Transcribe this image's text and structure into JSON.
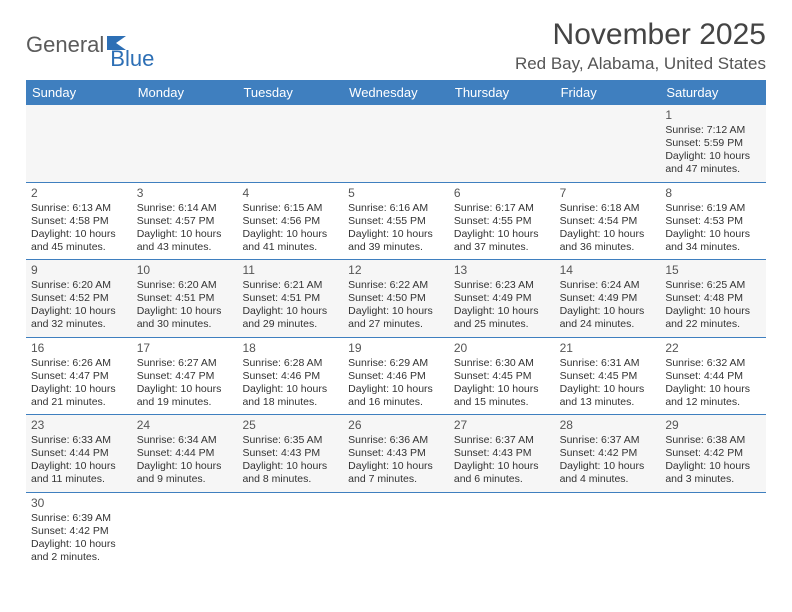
{
  "logo": {
    "text1": "General",
    "text2": "Blue"
  },
  "title": "November 2025",
  "location": "Red Bay, Alabama, United States",
  "day_headers": [
    "Sunday",
    "Monday",
    "Tuesday",
    "Wednesday",
    "Thursday",
    "Friday",
    "Saturday"
  ],
  "colors": {
    "header_bg": "#3f7fbf",
    "header_text": "#ffffff",
    "row_border": "#3f7fbf",
    "logo_blue": "#2d6fb5",
    "text": "#333333",
    "shaded_bg": "#f6f6f6"
  },
  "weeks": [
    [
      null,
      null,
      null,
      null,
      null,
      null,
      {
        "n": "1",
        "sr": "7:12 AM",
        "ss": "5:59 PM",
        "dl": "10 hours and 47 minutes."
      }
    ],
    [
      {
        "n": "2",
        "sr": "6:13 AM",
        "ss": "4:58 PM",
        "dl": "10 hours and 45 minutes."
      },
      {
        "n": "3",
        "sr": "6:14 AM",
        "ss": "4:57 PM",
        "dl": "10 hours and 43 minutes."
      },
      {
        "n": "4",
        "sr": "6:15 AM",
        "ss": "4:56 PM",
        "dl": "10 hours and 41 minutes."
      },
      {
        "n": "5",
        "sr": "6:16 AM",
        "ss": "4:55 PM",
        "dl": "10 hours and 39 minutes."
      },
      {
        "n": "6",
        "sr": "6:17 AM",
        "ss": "4:55 PM",
        "dl": "10 hours and 37 minutes."
      },
      {
        "n": "7",
        "sr": "6:18 AM",
        "ss": "4:54 PM",
        "dl": "10 hours and 36 minutes."
      },
      {
        "n": "8",
        "sr": "6:19 AM",
        "ss": "4:53 PM",
        "dl": "10 hours and 34 minutes."
      }
    ],
    [
      {
        "n": "9",
        "sr": "6:20 AM",
        "ss": "4:52 PM",
        "dl": "10 hours and 32 minutes."
      },
      {
        "n": "10",
        "sr": "6:20 AM",
        "ss": "4:51 PM",
        "dl": "10 hours and 30 minutes."
      },
      {
        "n": "11",
        "sr": "6:21 AM",
        "ss": "4:51 PM",
        "dl": "10 hours and 29 minutes."
      },
      {
        "n": "12",
        "sr": "6:22 AM",
        "ss": "4:50 PM",
        "dl": "10 hours and 27 minutes."
      },
      {
        "n": "13",
        "sr": "6:23 AM",
        "ss": "4:49 PM",
        "dl": "10 hours and 25 minutes."
      },
      {
        "n": "14",
        "sr": "6:24 AM",
        "ss": "4:49 PM",
        "dl": "10 hours and 24 minutes."
      },
      {
        "n": "15",
        "sr": "6:25 AM",
        "ss": "4:48 PM",
        "dl": "10 hours and 22 minutes."
      }
    ],
    [
      {
        "n": "16",
        "sr": "6:26 AM",
        "ss": "4:47 PM",
        "dl": "10 hours and 21 minutes."
      },
      {
        "n": "17",
        "sr": "6:27 AM",
        "ss": "4:47 PM",
        "dl": "10 hours and 19 minutes."
      },
      {
        "n": "18",
        "sr": "6:28 AM",
        "ss": "4:46 PM",
        "dl": "10 hours and 18 minutes."
      },
      {
        "n": "19",
        "sr": "6:29 AM",
        "ss": "4:46 PM",
        "dl": "10 hours and 16 minutes."
      },
      {
        "n": "20",
        "sr": "6:30 AM",
        "ss": "4:45 PM",
        "dl": "10 hours and 15 minutes."
      },
      {
        "n": "21",
        "sr": "6:31 AM",
        "ss": "4:45 PM",
        "dl": "10 hours and 13 minutes."
      },
      {
        "n": "22",
        "sr": "6:32 AM",
        "ss": "4:44 PM",
        "dl": "10 hours and 12 minutes."
      }
    ],
    [
      {
        "n": "23",
        "sr": "6:33 AM",
        "ss": "4:44 PM",
        "dl": "10 hours and 11 minutes."
      },
      {
        "n": "24",
        "sr": "6:34 AM",
        "ss": "4:44 PM",
        "dl": "10 hours and 9 minutes."
      },
      {
        "n": "25",
        "sr": "6:35 AM",
        "ss": "4:43 PM",
        "dl": "10 hours and 8 minutes."
      },
      {
        "n": "26",
        "sr": "6:36 AM",
        "ss": "4:43 PM",
        "dl": "10 hours and 7 minutes."
      },
      {
        "n": "27",
        "sr": "6:37 AM",
        "ss": "4:43 PM",
        "dl": "10 hours and 6 minutes."
      },
      {
        "n": "28",
        "sr": "6:37 AM",
        "ss": "4:42 PM",
        "dl": "10 hours and 4 minutes."
      },
      {
        "n": "29",
        "sr": "6:38 AM",
        "ss": "4:42 PM",
        "dl": "10 hours and 3 minutes."
      }
    ],
    [
      {
        "n": "30",
        "sr": "6:39 AM",
        "ss": "4:42 PM",
        "dl": "10 hours and 2 minutes."
      },
      null,
      null,
      null,
      null,
      null,
      null
    ]
  ],
  "labels": {
    "sunrise": "Sunrise:",
    "sunset": "Sunset:",
    "daylight": "Daylight:"
  }
}
